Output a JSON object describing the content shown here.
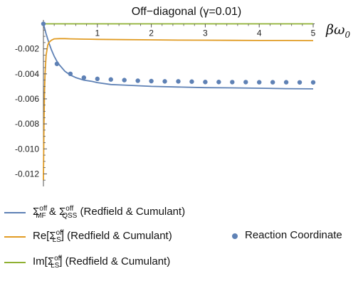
{
  "chart_data": {
    "type": "line",
    "title": "Off−diagonal (γ=0.01)",
    "xlabel": "βω",
    "xlabel_sub": "0",
    "xlim": [
      0,
      5
    ],
    "ylim": [
      -0.013,
      0.0002
    ],
    "xticks": [
      1,
      2,
      3,
      4,
      5
    ],
    "yticks": [
      -0.002,
      -0.004,
      -0.006,
      -0.008,
      -0.01,
      -0.012
    ],
    "ytick_labels": [
      "-0.002",
      "-0.004",
      "-0.006",
      "-0.008",
      "-0.010",
      "-0.012"
    ],
    "colors": {
      "series_mf_qss": "#5e81b5",
      "series_re_ls": "#e19c24",
      "series_im_ls": "#8fb032",
      "points": "#5e81b5",
      "axis": "#555555"
    },
    "series": [
      {
        "id": "mf_qss",
        "x": [
          0.0,
          0.05,
          0.1,
          0.15,
          0.2,
          0.25,
          0.3,
          0.4,
          0.5,
          0.6,
          0.75,
          0.9,
          1.0,
          1.25,
          1.5,
          1.75,
          2.0,
          2.5,
          3.0,
          3.5,
          4.0,
          4.5,
          5.0
        ],
        "y": [
          0.0,
          -0.0008,
          -0.0015,
          -0.0021,
          -0.0026,
          -0.003,
          -0.0033,
          -0.0038,
          -0.0041,
          -0.0043,
          -0.0045,
          -0.0046,
          -0.0047,
          -0.00485,
          -0.0049,
          -0.00495,
          -0.005,
          -0.00505,
          -0.0051,
          -0.00512,
          -0.00515,
          -0.00518,
          -0.0052
        ]
      },
      {
        "id": "re_ls",
        "x": [
          0.0,
          0.01,
          0.02,
          0.03,
          0.05,
          0.08,
          0.1,
          0.15,
          0.2,
          0.3,
          0.4,
          0.5,
          0.75,
          1.0,
          1.5,
          2.0,
          2.5,
          3.0,
          3.5,
          4.0,
          4.5,
          5.0
        ],
        "y": [
          -0.0125,
          -0.008,
          -0.0055,
          -0.004,
          -0.0025,
          -0.0017,
          -0.0015,
          -0.0013,
          -0.0012,
          -0.00118,
          -0.00118,
          -0.0012,
          -0.00122,
          -0.00124,
          -0.00126,
          -0.00128,
          -0.0013,
          -0.00131,
          -0.00132,
          -0.00133,
          -0.00133,
          -0.00134
        ]
      },
      {
        "id": "im_ls",
        "x": [
          0.0,
          5.0
        ],
        "y": [
          0.0,
          0.0
        ]
      }
    ],
    "points": {
      "x": [
        0.0,
        0.25,
        0.5,
        0.75,
        1.0,
        1.25,
        1.5,
        1.75,
        2.0,
        2.25,
        2.5,
        2.75,
        3.0,
        3.25,
        3.5,
        3.75,
        4.0,
        4.25,
        4.5,
        4.75,
        5.0
      ],
      "y": [
        0.0,
        -0.0032,
        -0.004,
        -0.0043,
        -0.0044,
        -0.00445,
        -0.0045,
        -0.00455,
        -0.00458,
        -0.0046,
        -0.0046,
        -0.00462,
        -0.00465,
        -0.00465,
        -0.00466,
        -0.00466,
        -0.00467,
        -0.00467,
        -0.00467,
        -0.00468,
        -0.00468
      ]
    }
  },
  "legend": {
    "mf_qss": {
      "sigma": "Σ",
      "sup": "off",
      "sub1": "MF",
      "amp": " & ",
      "sub2": "QSS",
      "tail": " (Redfield & Cumulant)"
    },
    "re_ls": {
      "prefix": "Re[",
      "sigma": "Σ",
      "sup": "off",
      "sub": "LS",
      "tail": "] (Redfield & Cumulant)"
    },
    "im_ls": {
      "prefix": "Im[",
      "sigma": "Σ",
      "sup": "off",
      "sub": "LS",
      "tail": "] (Redfield & Cumulant)"
    },
    "points": {
      "label": "Reaction Coordinate"
    }
  }
}
